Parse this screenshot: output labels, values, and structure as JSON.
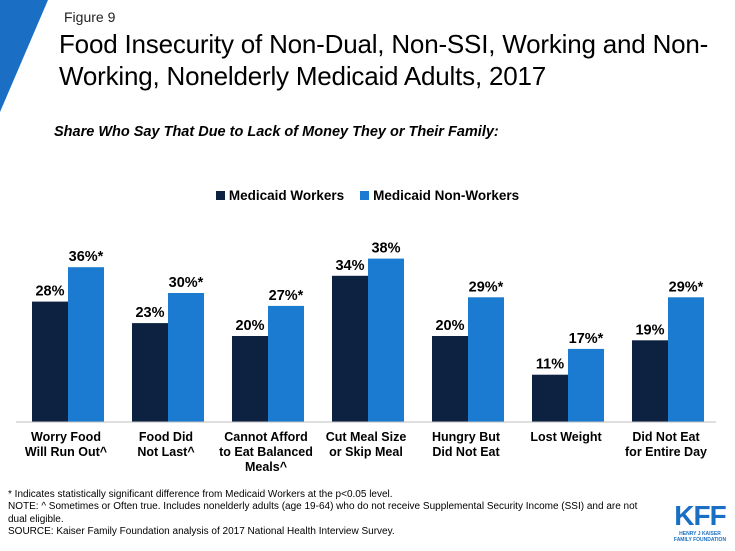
{
  "figure_label": "Figure 9",
  "title": "Food Insecurity of Non-Dual, Non-SSI, Working and Non-Working, Nonelderly Medicaid Adults, 2017",
  "subtitle": "Share Who Say That Due to Lack of Money They or Their Family:",
  "colors": {
    "accent": "#1a6fc4",
    "workers": "#0d2240",
    "non_workers": "#1a7bd0"
  },
  "chart_data": {
    "type": "bar",
    "title": "Food Insecurity of Non-Dual, Non-SSI, Working and Non-Working, Nonelderly Medicaid Adults, 2017",
    "categories": [
      [
        "Worry Food",
        "Will Run Out^"
      ],
      [
        "Food Did",
        "Not Last^"
      ],
      [
        "Cannot Afford",
        "to Eat Balanced",
        "Meals^"
      ],
      [
        "Cut Meal Size",
        "or Skip Meal"
      ],
      [
        "Hungry But",
        "Did Not Eat"
      ],
      [
        "Lost Weight"
      ],
      [
        "Did Not Eat",
        "for Entire Day"
      ]
    ],
    "series": [
      {
        "name": "Medicaid Workers",
        "values": [
          28,
          23,
          20,
          34,
          20,
          11,
          19
        ],
        "labels": [
          "28%",
          "23%",
          "20%",
          "34%",
          "20%",
          "11%",
          "19%"
        ]
      },
      {
        "name": "Medicaid Non-Workers",
        "values": [
          36,
          30,
          27,
          38,
          29,
          17,
          29
        ],
        "labels": [
          "36%*",
          "30%*",
          "27%*",
          "38%",
          "29%*",
          "17%*",
          "29%*"
        ]
      }
    ],
    "ylim": [
      0,
      40
    ],
    "xlabel": "",
    "ylabel": "",
    "legend_position": "top-center"
  },
  "footnotes": {
    "line1": "* Indicates statistically significant difference from Medicaid Workers at the p<0.05 level.",
    "line2": "NOTE: ^ Sometimes or Often true. Includes nonelderly adults (age 19-64) who do not receive Supplemental Security Income (SSI) and are not dual eligible.",
    "line3": "SOURCE: Kaiser Family Foundation analysis of 2017 National Health Interview Survey."
  },
  "logo": {
    "text": "KFF",
    "subtext_line1": "HENRY J KAISER",
    "subtext_line2": "FAMILY FOUNDATION"
  }
}
